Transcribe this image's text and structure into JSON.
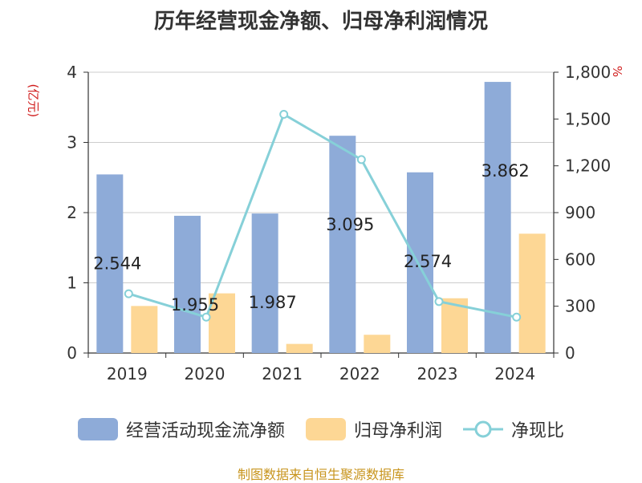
{
  "title": "历年经营现金净额、归母净利润情况",
  "left_unit": "(亿元)",
  "right_unit": "%",
  "source": "制图数据来自恒生聚源数据库",
  "colors": {
    "cash": "#8eabd8",
    "profit": "#fdd795",
    "ratio": "#86d0d8",
    "axis": "#333333",
    "grid": "#cccccc"
  },
  "chart_data": {
    "type": "bar",
    "title": "历年经营现金净额、归母净利润情况",
    "categories": [
      "2019",
      "2020",
      "2021",
      "2022",
      "2023",
      "2024"
    ],
    "series": [
      {
        "name": "经营活动现金流净额",
        "type": "bar",
        "axis": "left",
        "values": [
          2.544,
          1.955,
          1.987,
          3.095,
          2.574,
          3.862
        ],
        "labels": [
          "2.544",
          "1.955",
          "1.987",
          "3.095",
          "2.574",
          "3.862"
        ]
      },
      {
        "name": "归母净利润",
        "type": "bar",
        "axis": "left",
        "values": [
          0.67,
          0.85,
          0.13,
          0.26,
          0.78,
          1.7
        ]
      },
      {
        "name": "净现比",
        "type": "line",
        "axis": "right",
        "values": [
          380,
          230,
          1530,
          1240,
          330,
          230
        ]
      }
    ],
    "left_axis": {
      "label": "(亿元)",
      "min": 0,
      "max": 4,
      "ticks": [
        "0",
        "1",
        "2",
        "3",
        "4"
      ]
    },
    "right_axis": {
      "label": "%",
      "min": 0,
      "max": 1800,
      "ticks": [
        "0",
        "300",
        "600",
        "900",
        "1,200",
        "1,500",
        "1,800"
      ]
    },
    "grid": true,
    "legend": "bottom"
  }
}
